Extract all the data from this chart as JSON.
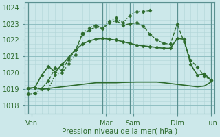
{
  "title": "",
  "xlabel": "Pression niveau de la mer( hPa )",
  "background_color": "#cce8ea",
  "grid_minor_color": "#b0d5d8",
  "grid_major_color": "#90bfc2",
  "line_color": "#2d6b2d",
  "ylim": [
    1017.5,
    1024.3
  ],
  "xlim": [
    -0.5,
    27.5
  ],
  "day_ticks_x": [
    0.5,
    11.5,
    15.5,
    22,
    27
  ],
  "day_labels": [
    "Ven",
    "Mar",
    "Sam",
    "Dim",
    "Lun"
  ],
  "vline_x": [
    0,
    11,
    15,
    22,
    27
  ],
  "yticks": [
    1018,
    1019,
    1020,
    1021,
    1022,
    1023,
    1024
  ],
  "series": [
    {
      "x": [
        0,
        1,
        2,
        3,
        4,
        5,
        6,
        7,
        8,
        9,
        10,
        11,
        12,
        13,
        14,
        15,
        16,
        17,
        18,
        19,
        20,
        21,
        22,
        23,
        24,
        25,
        26,
        27
      ],
      "y": [
        1019.05,
        1019.1,
        1019.0,
        1019.05,
        1019.1,
        1019.15,
        1019.2,
        1019.25,
        1019.3,
        1019.35,
        1019.4,
        1019.4,
        1019.4,
        1019.4,
        1019.42,
        1019.43,
        1019.44,
        1019.44,
        1019.44,
        1019.44,
        1019.4,
        1019.35,
        1019.3,
        1019.25,
        1019.2,
        1019.15,
        1019.2,
        1019.45
      ],
      "style": "-",
      "marker": null,
      "lw": 1.2,
      "ms": 0
    },
    {
      "x": [
        0,
        1,
        2,
        3,
        4,
        5,
        6,
        7,
        8,
        9,
        10,
        11,
        12,
        13,
        14,
        15,
        16,
        17,
        18,
        19,
        20,
        21,
        22,
        23,
        24,
        25,
        26,
        27
      ],
      "y": [
        1019.05,
        1019.1,
        1019.85,
        1020.4,
        1020.05,
        1020.5,
        1020.95,
        1021.4,
        1021.75,
        1021.95,
        1022.05,
        1022.1,
        1022.05,
        1022.0,
        1021.9,
        1021.8,
        1021.7,
        1021.65,
        1021.6,
        1021.55,
        1021.5,
        1021.5,
        1022.1,
        1022.05,
        1020.5,
        1019.85,
        1019.95,
        1019.55
      ],
      "style": "-",
      "marker": "D",
      "lw": 1.2,
      "ms": 2.5
    },
    {
      "x": [
        0,
        1,
        2,
        3,
        4,
        5,
        6,
        7,
        8,
        9,
        10,
        11,
        12,
        13,
        14,
        15,
        16,
        17,
        18,
        19,
        20,
        21,
        22,
        23,
        24,
        25,
        26,
        27
      ],
      "y": [
        1019.05,
        1019.1,
        1019.05,
        1019.5,
        1020.3,
        1020.2,
        1020.8,
        1021.4,
        1022.35,
        1022.6,
        1022.8,
        1022.7,
        1023.05,
        1023.2,
        1022.9,
        1023.0,
        1023.05,
        1022.85,
        1022.35,
        1022.0,
        1021.8,
        1021.75,
        1023.0,
        1021.9,
        1020.75,
        1020.35,
        1019.8,
        1019.55
      ],
      "style": "--",
      "marker": "D",
      "lw": 1.0,
      "ms": 2.5
    },
    {
      "x": [
        0,
        1,
        2,
        3,
        4,
        5,
        6,
        7,
        8,
        9,
        10,
        11,
        12,
        13,
        14,
        15,
        16,
        17,
        18
      ],
      "y": [
        1018.7,
        1018.75,
        1019.0,
        1019.0,
        1019.9,
        1020.0,
        1020.55,
        1021.1,
        1022.45,
        1022.75,
        1022.9,
        1022.75,
        1023.15,
        1023.35,
        1023.05,
        1023.5,
        1023.75,
        1023.75,
        1023.8
      ],
      "style": ":",
      "marker": "D",
      "lw": 1.0,
      "ms": 2.5
    }
  ]
}
